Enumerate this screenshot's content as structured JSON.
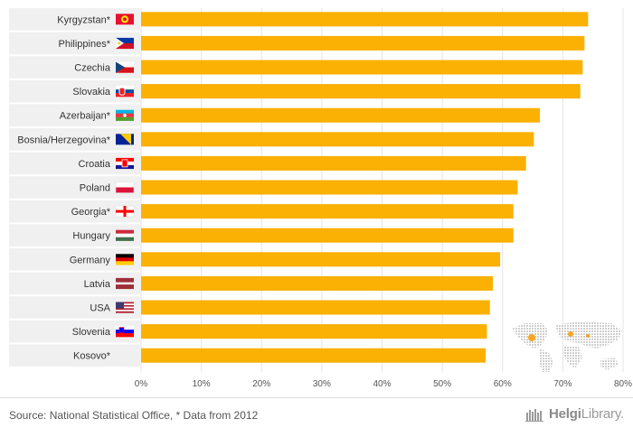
{
  "chart_data": {
    "type": "bar",
    "orientation": "horizontal",
    "categories": [
      "Kyrgyzstan*",
      "Philippines*",
      "Czechia",
      "Slovakia",
      "Azerbaijan*",
      "Bosnia/Herzegovina*",
      "Croatia",
      "Poland",
      "Georgia*",
      "Hungary",
      "Germany",
      "Latvia",
      "USA",
      "Slovenia",
      "Kosovo*"
    ],
    "values": [
      74.2,
      73.6,
      73.3,
      72.9,
      66.2,
      65.2,
      63.9,
      62.5,
      61.8,
      61.8,
      59.6,
      58.4,
      57.9,
      57.4,
      57.2
    ],
    "xlim": [
      0,
      80
    ],
    "xticks": [
      "0%",
      "10%",
      "20%",
      "30%",
      "40%",
      "50%",
      "60%",
      "70%",
      "80%"
    ],
    "bar_color": "#fbb103",
    "row_band_color": "#f0f0f0",
    "grid": true
  },
  "flags": [
    "kyrgyzstan-flag-icon",
    "philippines-flag-icon",
    "czechia-flag-icon",
    "slovakia-flag-icon",
    "azerbaijan-flag-icon",
    "bosnia-herzegovina-flag-icon",
    "croatia-flag-icon",
    "poland-flag-icon",
    "georgia-flag-icon",
    "hungary-flag-icon",
    "germany-flag-icon",
    "latvia-flag-icon",
    "usa-flag-icon",
    "slovenia-flag-icon",
    "kosovo-flag-icon"
  ],
  "footer": {
    "source": "Source: National Statistical Office, * Data from 2012",
    "logo_text_1": "Helgi",
    "logo_text_2": "Library."
  }
}
